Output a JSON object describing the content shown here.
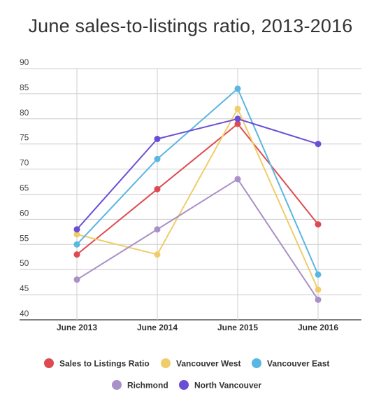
{
  "chart_data": {
    "type": "line",
    "title": "June sales-to-listings ratio, 2013-2016",
    "categories": [
      "June 2013",
      "June 2014",
      "June 2015",
      "June 2016"
    ],
    "ylim": [
      40,
      90
    ],
    "yticks": [
      40,
      45,
      50,
      55,
      60,
      65,
      70,
      75,
      80,
      85,
      90
    ],
    "grid": true,
    "legend_position": "bottom",
    "series": [
      {
        "name": "Sales to Listings Ratio",
        "color": "#dd4b51",
        "values": [
          53,
          66,
          79,
          59
        ]
      },
      {
        "name": "Vancouver West",
        "color": "#f0cd6a",
        "values": [
          57,
          53,
          82,
          46
        ]
      },
      {
        "name": "Vancouver East",
        "color": "#5ab6e2",
        "values": [
          55,
          72,
          86,
          49
        ]
      },
      {
        "name": "Richmond",
        "color": "#a990c6",
        "values": [
          48,
          58,
          68,
          44
        ]
      },
      {
        "name": "North Vancouver",
        "color": "#6a4ed6",
        "values": [
          58,
          76,
          80,
          75
        ]
      }
    ]
  }
}
